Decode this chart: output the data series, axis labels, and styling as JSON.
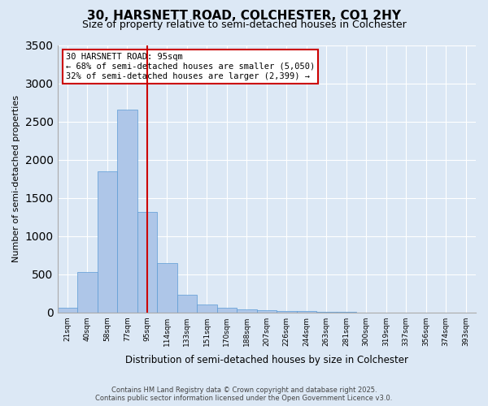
{
  "title1": "30, HARSNETT ROAD, COLCHESTER, CO1 2HY",
  "title2": "Size of property relative to semi-detached houses in Colchester",
  "xlabel": "Distribution of semi-detached houses by size in Colchester",
  "ylabel": "Number of semi-detached properties",
  "bar_values": [
    60,
    530,
    1850,
    2650,
    1310,
    640,
    230,
    100,
    60,
    40,
    25,
    20,
    15,
    5,
    2,
    1,
    0,
    0,
    0,
    0,
    0
  ],
  "bin_labels": [
    "21sqm",
    "40sqm",
    "58sqm",
    "77sqm",
    "95sqm",
    "114sqm",
    "133sqm",
    "151sqm",
    "170sqm",
    "188sqm",
    "207sqm",
    "226sqm",
    "244sqm",
    "263sqm",
    "281sqm",
    "300sqm",
    "319sqm",
    "337sqm",
    "356sqm",
    "374sqm",
    "393sqm"
  ],
  "property_bin_index": 4,
  "annotation_title": "30 HARSNETT ROAD: 95sqm",
  "annotation_line1": "← 68% of semi-detached houses are smaller (5,050)",
  "annotation_line2": "32% of semi-detached houses are larger (2,399) →",
  "bar_color": "#aec6e8",
  "bar_edge_color": "#5b9bd5",
  "vline_color": "#cc0000",
  "annotation_box_color": "#ffffff",
  "annotation_box_edge": "#cc0000",
  "background_color": "#dce8f5",
  "plot_bg_color": "#dce8f5",
  "footer1": "Contains HM Land Registry data © Crown copyright and database right 2025.",
  "footer2": "Contains public sector information licensed under the Open Government Licence v3.0.",
  "ylim": [
    0,
    3500
  ],
  "yticks": [
    0,
    500,
    1000,
    1500,
    2000,
    2500,
    3000,
    3500
  ]
}
